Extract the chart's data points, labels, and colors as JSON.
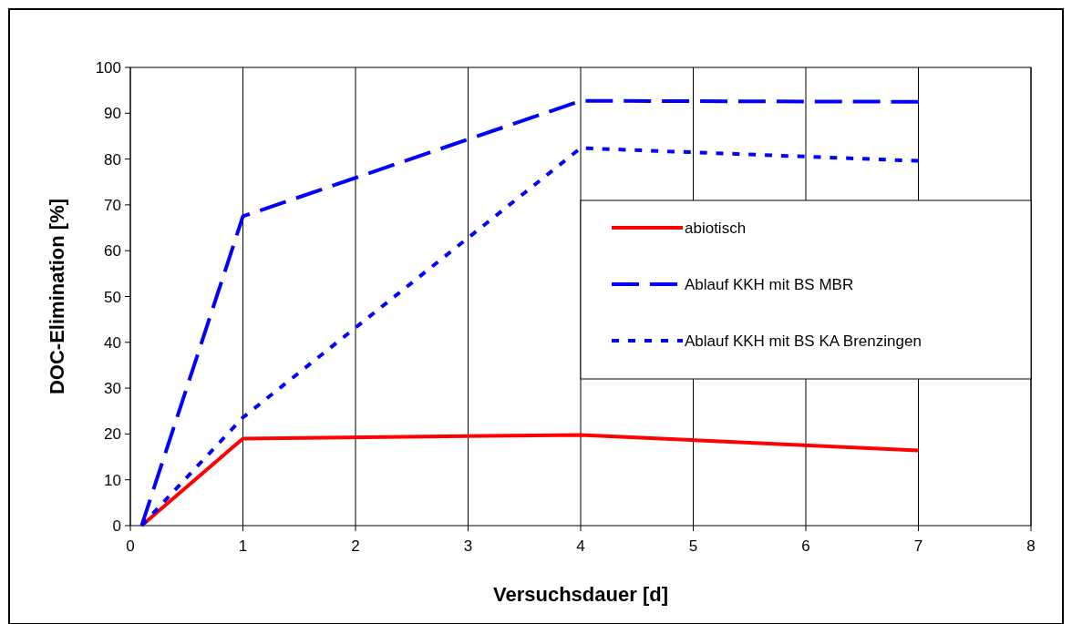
{
  "chart_data": {
    "type": "line",
    "xlabel": "Versuchsdauer [d]",
    "ylabel": "DOC-Elimination [%]",
    "xlim": [
      0,
      8
    ],
    "xticks": [
      0,
      1,
      2,
      3,
      4,
      5,
      6,
      7,
      8
    ],
    "ylim": [
      0,
      100
    ],
    "yticks": [
      0,
      10,
      20,
      30,
      40,
      50,
      60,
      70,
      80,
      90,
      100
    ],
    "grid": "x",
    "legend": "right",
    "marker": "none",
    "series": [
      {
        "name": "abiotisch",
        "color": "#ff0000",
        "line_style": "solid",
        "x": [
          0.1,
          1,
          4,
          7
        ],
        "values": [
          0,
          19,
          19.8,
          16.4
        ]
      },
      {
        "name": "Ablauf KKH mit BS MBR",
        "color": "#0000ff",
        "line_style": "dashed",
        "x": [
          0.1,
          1,
          4,
          7
        ],
        "values": [
          0,
          67.5,
          92.7,
          92.5
        ]
      },
      {
        "name": "Ablauf KKH mit BS KA Brenzingen",
        "color": "#0000ff",
        "line_style": "dotted",
        "x": [
          0.1,
          1,
          4,
          7
        ],
        "values": [
          0,
          23.6,
          82.4,
          79.6
        ]
      }
    ]
  }
}
